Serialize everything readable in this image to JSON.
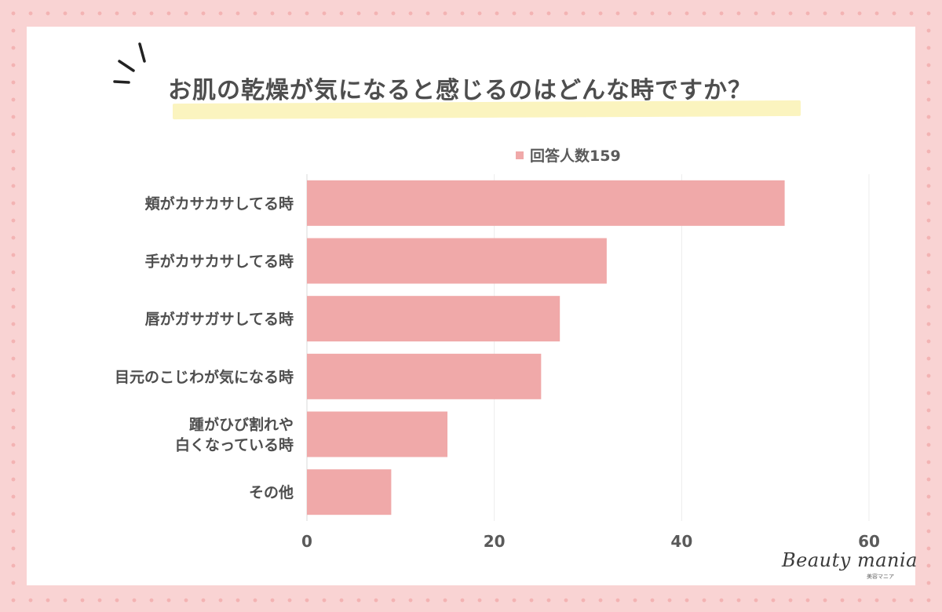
{
  "title": "お肌の乾燥が気になると感じるのはどんな時ですか？",
  "legend": {
    "label": "回答人数159",
    "color": "#f0a9a9"
  },
  "chart_data": {
    "type": "bar",
    "orientation": "horizontal",
    "categories": [
      "頬がカサカサしてる時",
      "手がカサカサしてる時",
      "唇がガサガサしてる時",
      "目元のこじわが気になる時",
      "踵がひび割れや\n白くなっている時",
      "その他"
    ],
    "series": [
      {
        "name": "回答人数159",
        "values": [
          51,
          32,
          27,
          25,
          15,
          9
        ]
      }
    ],
    "xlim": [
      0,
      60
    ],
    "xticks": [
      "0",
      "20",
      "40",
      "60"
    ],
    "grid": true,
    "legend_position": "top",
    "bar_color": "#f0a9a9"
  },
  "logo": {
    "main": "Beauty mania",
    "sub": "美容マニア"
  }
}
